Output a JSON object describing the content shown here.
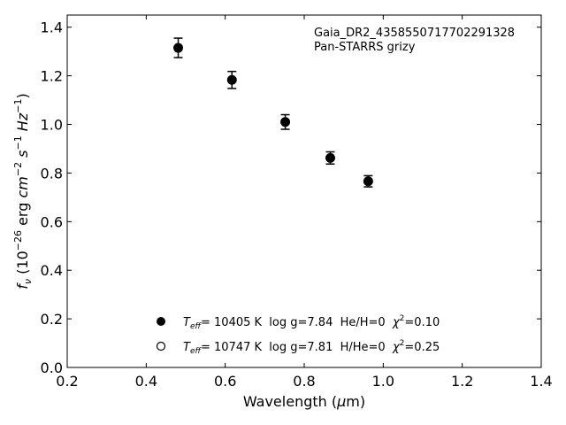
{
  "chart_data": {
    "type": "scatter",
    "title": "",
    "xlabel": {
      "pre": "Wavelength (",
      "greek": "μ",
      "post": "m)"
    },
    "ylabel": {
      "f": "f",
      "f_sub": "ν",
      "a": " (10",
      "exp1": "−26",
      "b": " erg ",
      "cm": "cm",
      "exp2": "−2",
      "s": " s",
      "exp3": "−1",
      "hz": " Hz",
      "exp4": "−1",
      "c": ")"
    },
    "xlim": [
      0.2,
      1.4
    ],
    "ylim": [
      0.0,
      1.45
    ],
    "x_ticks": [
      0.2,
      0.4,
      0.6,
      0.8,
      1.0,
      1.2,
      1.4
    ],
    "x_tick_labels": [
      "0.2",
      "0.4",
      "0.6",
      "0.8",
      "1.0",
      "1.2",
      "1.4"
    ],
    "y_ticks": [
      0.0,
      0.2,
      0.4,
      0.6,
      0.8,
      1.0,
      1.2,
      1.4
    ],
    "y_tick_labels": [
      "0.0",
      "0.2",
      "0.4",
      "0.6",
      "0.8",
      "1.0",
      "1.2",
      "1.4"
    ],
    "grid": false,
    "annotation": {
      "line1": "Gaia_DR2_4358550717702291328",
      "line2": "Pan-STARRS grizy"
    },
    "series": [
      {
        "marker": "filled-circle",
        "color": "#000000",
        "points": [
          {
            "x": 0.481,
            "y": 1.315,
            "err": 0.04
          },
          {
            "x": 0.617,
            "y": 1.183,
            "err": 0.035
          },
          {
            "x": 0.752,
            "y": 1.01,
            "err": 0.03
          },
          {
            "x": 0.866,
            "y": 0.862,
            "err": 0.025
          },
          {
            "x": 0.962,
            "y": 0.766,
            "err": 0.023
          }
        ]
      }
    ],
    "legend": {
      "placement": "lower-center",
      "entries": [
        {
          "marker": "filled-circle",
          "T": "T",
          "T_sub": "eff",
          "body": "= 10405 K  log g=7.84  He/H=0  ",
          "chi": "χ",
          "chi_exp": "2",
          "tail": "=0.10"
        },
        {
          "marker": "open-circle",
          "T": "T",
          "T_sub": "eff",
          "body": "= 10747 K  log g=7.81  H/He=0  ",
          "chi": "χ",
          "chi_exp": "2",
          "tail": "=0.25"
        }
      ]
    }
  }
}
